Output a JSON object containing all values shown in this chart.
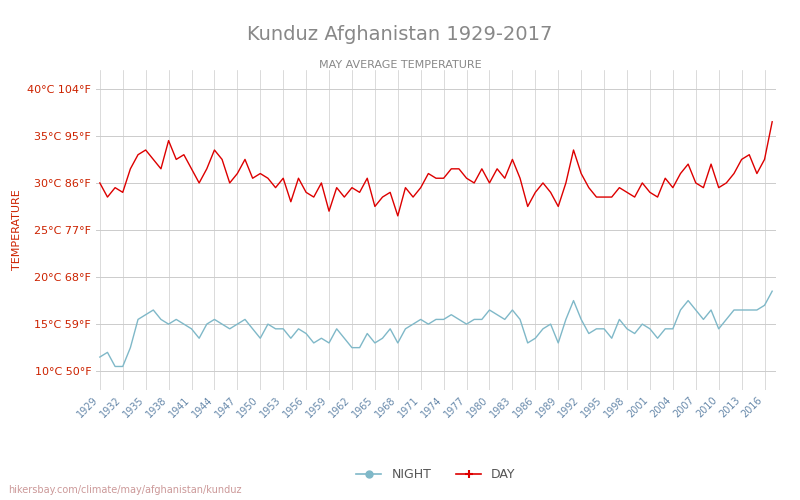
{
  "title": "Kunduz Afghanistan 1929-2017",
  "subtitle": "MAY AVERAGE TEMPERATURE",
  "xlabel": "",
  "ylabel": "TEMPERATURE",
  "title_color": "#888888",
  "subtitle_color": "#888888",
  "ylabel_color": "#cc2200",
  "axis_label_color": "#cc2200",
  "background_color": "#ffffff",
  "grid_color": "#cccccc",
  "day_color": "#dd0000",
  "night_color": "#7fb8c8",
  "years": [
    1929,
    1930,
    1931,
    1932,
    1933,
    1934,
    1935,
    1936,
    1937,
    1938,
    1939,
    1940,
    1941,
    1942,
    1943,
    1944,
    1945,
    1946,
    1947,
    1948,
    1949,
    1950,
    1951,
    1952,
    1953,
    1954,
    1955,
    1956,
    1957,
    1958,
    1959,
    1960,
    1961,
    1962,
    1963,
    1964,
    1965,
    1966,
    1967,
    1968,
    1969,
    1970,
    1971,
    1972,
    1973,
    1974,
    1975,
    1976,
    1977,
    1978,
    1979,
    1980,
    1981,
    1982,
    1983,
    1984,
    1985,
    1986,
    1987,
    1988,
    1989,
    1990,
    1991,
    1992,
    1993,
    1994,
    1995,
    1996,
    1997,
    1998,
    1999,
    2000,
    2001,
    2002,
    2003,
    2004,
    2005,
    2006,
    2007,
    2008,
    2009,
    2010,
    2011,
    2012,
    2013,
    2014,
    2015,
    2016,
    2017
  ],
  "day_temps": [
    30.0,
    28.5,
    29.5,
    29.0,
    31.5,
    33.0,
    33.5,
    32.5,
    31.5,
    34.5,
    32.5,
    33.0,
    31.5,
    30.0,
    31.5,
    33.5,
    32.5,
    30.0,
    31.0,
    32.5,
    30.5,
    31.0,
    30.5,
    29.5,
    30.5,
    28.0,
    30.5,
    29.0,
    28.5,
    30.0,
    27.0,
    29.5,
    28.5,
    29.5,
    29.0,
    30.5,
    27.5,
    28.5,
    29.0,
    26.5,
    29.5,
    28.5,
    29.5,
    31.0,
    30.5,
    30.5,
    31.5,
    31.5,
    30.5,
    30.0,
    31.5,
    30.0,
    31.5,
    30.5,
    32.5,
    30.5,
    27.5,
    29.0,
    30.0,
    29.0,
    27.5,
    30.0,
    33.5,
    31.0,
    29.5,
    28.5,
    28.5,
    28.5,
    29.5,
    29.0,
    28.5,
    30.0,
    29.0,
    28.5,
    30.5,
    29.5,
    31.0,
    32.0,
    30.0,
    29.5,
    32.0,
    29.5,
    30.0,
    31.0,
    32.5,
    33.0,
    31.0,
    32.5,
    36.5
  ],
  "night_temps": [
    11.5,
    12.0,
    10.5,
    10.5,
    12.5,
    15.5,
    16.0,
    16.5,
    15.5,
    15.0,
    15.5,
    15.0,
    14.5,
    13.5,
    15.0,
    15.5,
    15.0,
    14.5,
    15.0,
    15.5,
    14.5,
    13.5,
    15.0,
    14.5,
    14.5,
    13.5,
    14.5,
    14.0,
    13.0,
    13.5,
    13.0,
    14.5,
    13.5,
    12.5,
    12.5,
    14.0,
    13.0,
    13.5,
    14.5,
    13.0,
    14.5,
    15.0,
    15.5,
    15.0,
    15.5,
    15.5,
    16.0,
    15.5,
    15.0,
    15.5,
    15.5,
    16.5,
    16.0,
    15.5,
    16.5,
    15.5,
    13.0,
    13.5,
    14.5,
    15.0,
    13.0,
    15.5,
    17.5,
    15.5,
    14.0,
    14.5,
    14.5,
    13.5,
    15.5,
    14.5,
    14.0,
    15.0,
    14.5,
    13.5,
    14.5,
    14.5,
    16.5,
    17.5,
    16.5,
    15.5,
    16.5,
    14.5,
    15.5,
    16.5,
    16.5,
    16.5,
    16.5,
    17.0,
    18.5
  ],
  "yticks_c": [
    10,
    15,
    20,
    25,
    30,
    35,
    40
  ],
  "yticks_f": [
    50,
    59,
    68,
    77,
    86,
    95,
    104
  ],
  "xtick_years": [
    1929,
    1932,
    1935,
    1938,
    1941,
    1944,
    1947,
    1950,
    1953,
    1956,
    1959,
    1962,
    1965,
    1968,
    1971,
    1974,
    1977,
    1980,
    1983,
    1986,
    1989,
    1992,
    1995,
    1998,
    2001,
    2004,
    2007,
    2010,
    2013,
    2016
  ],
  "ymin": 8,
  "ymax": 42,
  "legend_night": "NIGHT",
  "legend_day": "DAY",
  "watermark": "hikersbay.com/climate/may/afghanistan/kunduz"
}
